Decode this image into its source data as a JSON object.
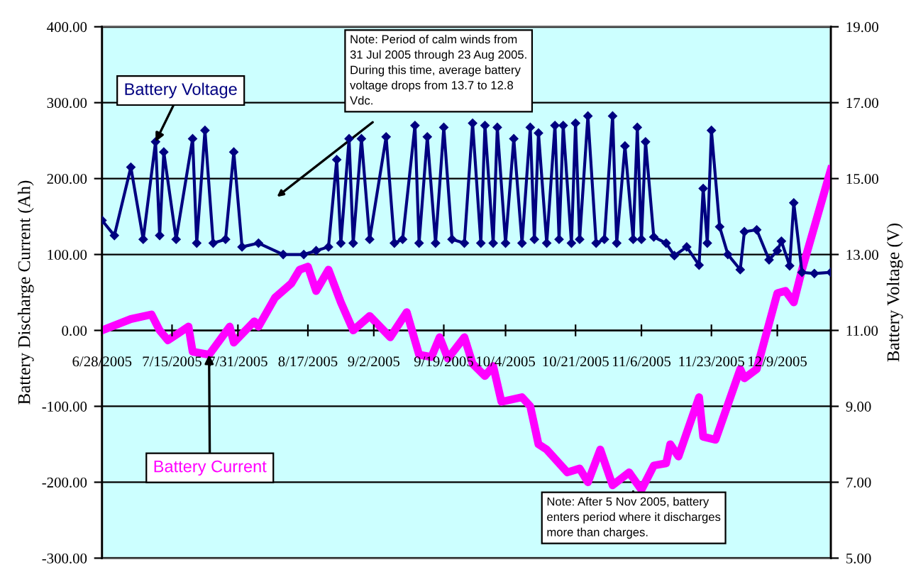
{
  "chart_data": {
    "type": "line",
    "ylabel": "Battery Discharge Current (Ah)",
    "y2label": "Battery Voltage (V)",
    "xlim": [
      "2005-06-28",
      "2005-12-22"
    ],
    "xticks": [
      {
        "value": "2005-06-28",
        "label": "6/28/2005"
      },
      {
        "value": "2005-07-15",
        "label": "7/15/2005"
      },
      {
        "value": "2005-07-31",
        "label": "7/31/2005"
      },
      {
        "value": "2005-08-17",
        "label": "8/17/2005"
      },
      {
        "value": "2005-09-02",
        "label": "9/2/2005"
      },
      {
        "value": "2005-09-19",
        "label": "9/19/2005"
      },
      {
        "value": "2005-10-04",
        "label": "10/4/2005"
      },
      {
        "value": "2005-10-21",
        "label": "10/21/2005"
      },
      {
        "value": "2005-11-06",
        "label": "11/6/2005"
      },
      {
        "value": "2005-11-23",
        "label": "11/23/2005"
      },
      {
        "value": "2005-12-09",
        "label": "12/9/2005"
      }
    ],
    "ylim": [
      -300,
      400
    ],
    "yticks": [
      {
        "value": -300,
        "label": "-300.00"
      },
      {
        "value": -200,
        "label": "-200.00"
      },
      {
        "value": -100,
        "label": "-100.00"
      },
      {
        "value": 0,
        "label": "0.00"
      },
      {
        "value": 100,
        "label": "100.00"
      },
      {
        "value": 200,
        "label": "200.00"
      },
      {
        "value": 300,
        "label": "300.00"
      },
      {
        "value": 400,
        "label": "400.00"
      }
    ],
    "y2lim": [
      5,
      19
    ],
    "y2ticks": [
      {
        "value": 5,
        "label": "5.00"
      },
      {
        "value": 7,
        "label": "7.00"
      },
      {
        "value": 9,
        "label": "9.00"
      },
      {
        "value": 11,
        "label": "11.00"
      },
      {
        "value": 13,
        "label": "13.00"
      },
      {
        "value": 15,
        "label": "15.00"
      },
      {
        "value": 17,
        "label": "17.00"
      },
      {
        "value": 19,
        "label": "19.00"
      }
    ],
    "grid": "y",
    "legend": false,
    "series": [
      {
        "name": "Battery Voltage",
        "color": "#000080",
        "axis": "y2",
        "marker": "diamond",
        "x": [
          "2005-06-28",
          "2005-07-01",
          "2005-07-05",
          "2005-07-08",
          "2005-07-11",
          "2005-07-12",
          "2005-07-13",
          "2005-07-16",
          "2005-07-20",
          "2005-07-21",
          "2005-07-23",
          "2005-07-25",
          "2005-07-28",
          "2005-07-30",
          "2005-08-01",
          "2005-08-05",
          "2005-08-11",
          "2005-08-16",
          "2005-08-19",
          "2005-08-22",
          "2005-08-24",
          "2005-08-25",
          "2005-08-27",
          "2005-08-28",
          "2005-08-30",
          "2005-09-01",
          "2005-09-05",
          "2005-09-07",
          "2005-09-09",
          "2005-09-12",
          "2005-09-13",
          "2005-09-15",
          "2005-09-17",
          "2005-09-19",
          "2005-09-21",
          "2005-09-24",
          "2005-09-26",
          "2005-09-28",
          "2005-09-29",
          "2005-10-01",
          "2005-10-02",
          "2005-10-04",
          "2005-10-06",
          "2005-10-08",
          "2005-10-10",
          "2005-10-11",
          "2005-10-12",
          "2005-10-14",
          "2005-10-16",
          "2005-10-17",
          "2005-10-18",
          "2005-10-20",
          "2005-10-21",
          "2005-10-22",
          "2005-10-24",
          "2005-10-26",
          "2005-10-28",
          "2005-10-30",
          "2005-10-31",
          "2005-11-02",
          "2005-11-04",
          "2005-11-05",
          "2005-11-06",
          "2005-11-07",
          "2005-11-09",
          "2005-11-12",
          "2005-11-14",
          "2005-11-17",
          "2005-11-20",
          "2005-11-21",
          "2005-11-22",
          "2005-11-23",
          "2005-11-25",
          "2005-11-27",
          "2005-11-30",
          "2005-12-01",
          "2005-12-04",
          "2005-12-07",
          "2005-12-09",
          "2005-12-10",
          "2005-12-12",
          "2005-12-13",
          "2005-12-15",
          "2005-12-18",
          "2005-12-22"
        ],
        "values": [
          13.9,
          13.5,
          15.3,
          13.4,
          15.97,
          13.5,
          15.7,
          13.4,
          16.05,
          13.3,
          16.27,
          13.3,
          13.4,
          15.7,
          13.2,
          13.3,
          13.0,
          13.0,
          13.1,
          13.2,
          15.5,
          13.3,
          16.05,
          13.3,
          16.05,
          13.4,
          16.1,
          13.3,
          13.4,
          16.4,
          13.3,
          16.1,
          13.3,
          16.35,
          13.4,
          13.3,
          16.46,
          13.3,
          16.4,
          13.3,
          16.35,
          13.3,
          16.05,
          13.3,
          16.35,
          13.4,
          16.2,
          13.3,
          16.4,
          13.4,
          16.4,
          13.3,
          16.46,
          13.4,
          16.65,
          13.3,
          13.4,
          16.65,
          13.3,
          15.86,
          13.4,
          16.35,
          13.4,
          15.97,
          13.46,
          13.3,
          12.97,
          13.2,
          12.72,
          14.74,
          13.3,
          16.27,
          13.73,
          13.0,
          12.6,
          13.6,
          13.65,
          12.86,
          13.1,
          13.35,
          12.7,
          14.36,
          12.53,
          12.5,
          12.53
        ]
      },
      {
        "name": "Battery Current",
        "color": "#ff00ff",
        "marker": "none",
        "x": [
          "2005-06-28",
          "2005-07-05",
          "2005-07-10",
          "2005-07-12",
          "2005-07-14",
          "2005-07-19",
          "2005-07-20",
          "2005-07-24",
          "2005-07-29",
          "2005-07-30",
          "2005-08-04",
          "2005-08-05",
          "2005-08-09",
          "2005-08-13",
          "2005-08-15",
          "2005-08-17",
          "2005-08-19",
          "2005-08-22",
          "2005-08-25",
          "2005-08-28",
          "2005-09-01",
          "2005-09-06",
          "2005-09-10",
          "2005-09-13",
          "2005-09-16",
          "2005-09-18",
          "2005-09-20",
          "2005-09-24",
          "2005-09-26",
          "2005-09-29",
          "2005-10-01",
          "2005-10-03",
          "2005-10-08",
          "2005-10-10",
          "2005-10-12",
          "2005-10-14",
          "2005-10-19",
          "2005-10-22",
          "2005-10-24",
          "2005-10-27",
          "2005-10-30",
          "2005-11-03",
          "2005-11-06",
          "2005-11-09",
          "2005-11-12",
          "2005-11-13",
          "2005-11-15",
          "2005-11-20",
          "2005-11-21",
          "2005-11-24",
          "2005-11-30",
          "2005-12-01",
          "2005-12-04",
          "2005-12-09",
          "2005-12-11",
          "2005-12-13",
          "2005-12-15",
          "2005-12-22"
        ],
        "values": [
          0,
          15,
          21,
          0,
          -13,
          5,
          -28,
          -32,
          5,
          -16,
          12,
          5,
          43,
          62,
          80,
          84,
          52,
          80,
          37,
          0,
          19,
          -9,
          24,
          -32,
          -35,
          -9,
          -37,
          -9,
          -44,
          -60,
          -47,
          -94,
          -88,
          -100,
          -150,
          -157,
          -187,
          -182,
          -200,
          -157,
          -204,
          -187,
          -210,
          -178,
          -175,
          -150,
          -166,
          -88,
          -140,
          -144,
          -51,
          -63,
          -51,
          49,
          52,
          37,
          80,
          212
        ]
      }
    ],
    "annotations": [
      "Note: Period of calm winds from\n31 Jul 2005 through 23 Aug 2005.\nDuring this time, average battery\nvoltage drops from 13.7 to 12.8\nVdc.",
      {
        "text": "Note: After 5 Nov 2005, battery\nenters period where it discharges\nmore than charges.",
        "x": "2005-11-04",
        "y": -212
      }
    ]
  }
}
